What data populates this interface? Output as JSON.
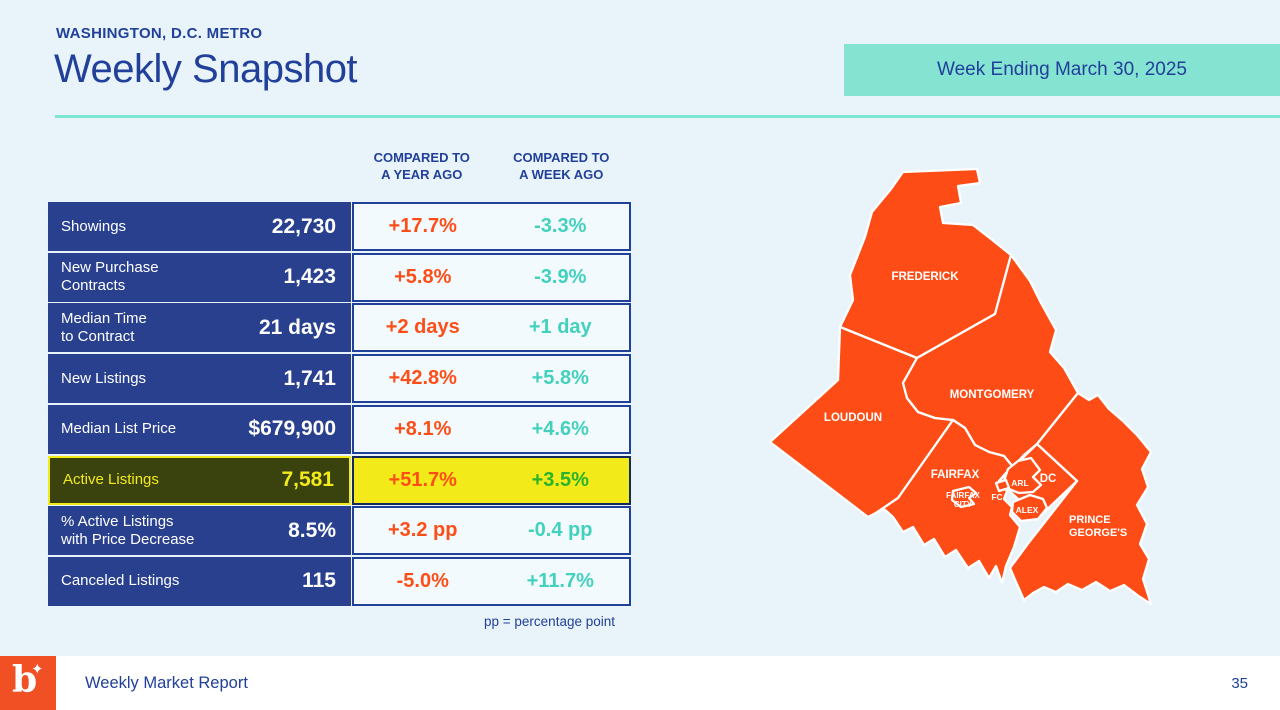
{
  "header": {
    "eyebrow": "WASHINGTON, D.C. METRO",
    "title": "Weekly Snapshot",
    "banner": "Week Ending March 30, 2025"
  },
  "table": {
    "column_headers": [
      "COMPARED TO\nA YEAR AGO",
      "COMPARED TO\nA WEEK AGO"
    ],
    "rows": [
      {
        "label": "Showings",
        "value": "22,730",
        "vs_year": "+17.7%",
        "vs_week": "-3.3%",
        "highlight": false
      },
      {
        "label": "New Purchase\nContracts",
        "value": "1,423",
        "vs_year": "+5.8%",
        "vs_week": "-3.9%",
        "highlight": false
      },
      {
        "label": "Median Time\nto Contract",
        "value": "21 days",
        "vs_year": "+2 days",
        "vs_week": "+1 day",
        "highlight": false
      },
      {
        "label": "New Listings",
        "value": "1,741",
        "vs_year": "+42.8%",
        "vs_week": "+5.8%",
        "highlight": false
      },
      {
        "label": "Median List Price",
        "value": "$679,900",
        "vs_year": "+8.1%",
        "vs_week": "+4.6%",
        "highlight": false
      },
      {
        "label": "Active Listings",
        "value": "7,581",
        "vs_year": "+51.7%",
        "vs_week": "+3.5%",
        "highlight": true
      },
      {
        "label": "% Active Listings\nwith Price Decrease",
        "value": "8.5%",
        "vs_year": "+3.2 pp",
        "vs_week": "-0.4 pp",
        "highlight": false
      },
      {
        "label": "Canceled Listings",
        "value": "115",
        "vs_year": "-5.0%",
        "vs_week": "+11.7%",
        "highlight": false
      }
    ],
    "footnote": "pp = percentage point"
  },
  "map": {
    "regions": [
      {
        "id": "frederick",
        "label": "FREDERICK"
      },
      {
        "id": "loudoun",
        "label": "LOUDOUN"
      },
      {
        "id": "montgomery",
        "label": "MONTGOMERY"
      },
      {
        "id": "fairfax",
        "label": "FAIRFAX"
      },
      {
        "id": "prince-georges",
        "label": "PRINCE",
        "label2": "GEORGE'S"
      },
      {
        "id": "dc",
        "label": "DC"
      },
      {
        "id": "arlington",
        "label": "ARL"
      },
      {
        "id": "alexandria",
        "label": "ALEX"
      },
      {
        "id": "fairfax-city",
        "label": "FAIRFAX",
        "label2": "CITY"
      },
      {
        "id": "falls-church",
        "label": "FC"
      }
    ]
  },
  "footer": {
    "logo_letter": "b",
    "logo_star": "✦",
    "report_title": "Weekly Market Report",
    "page_number": "35"
  },
  "colors": {
    "bg": "#e9f4fa",
    "navy": "#21409a",
    "row-blue": "#29408f",
    "cell-bg": "#f3fafd",
    "orange": "#fd4e18",
    "teal": "#43d1bd",
    "green": "#28b32c",
    "yellow": "#f3ea19",
    "olive": "#3a430e",
    "hl-border": "#14295c",
    "map-orange": "#fd4c15",
    "banner-teal": "#85e3d1",
    "divider-teal": "#7de5d2",
    "logo-orange": "#f05023",
    "footer-bg": "#ffffff",
    "pg-label2": "#ffab97"
  }
}
